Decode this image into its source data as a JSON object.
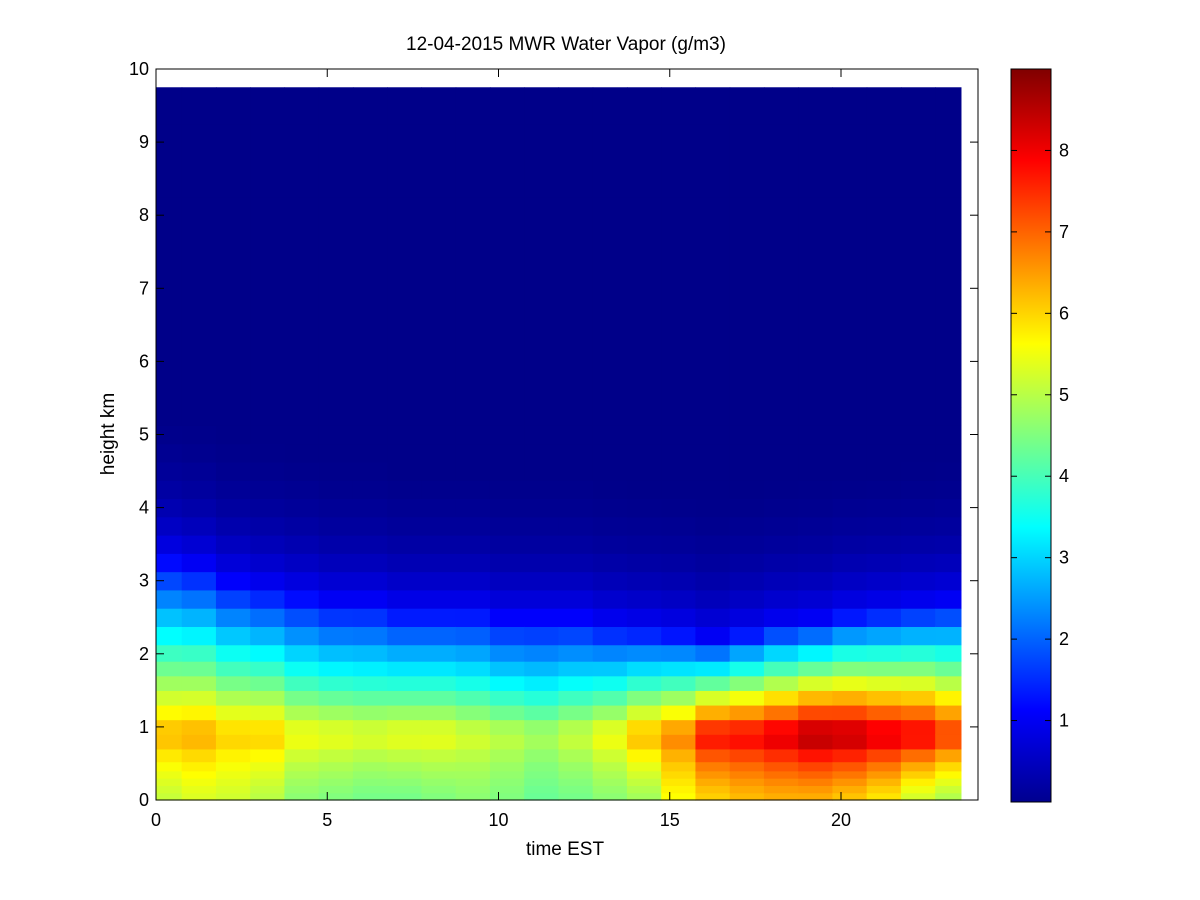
{
  "chart_data": {
    "type": "heatmap",
    "title": "12-04-2015 MWR Water Vapor (g/m3)",
    "xlabel": "time EST",
    "ylabel": "height km",
    "xlim": [
      0,
      24
    ],
    "ylim": [
      0,
      10
    ],
    "data_extent": {
      "x": [
        0,
        23.5
      ],
      "y": [
        0,
        9.75
      ]
    },
    "xticks": [
      0,
      5,
      10,
      15,
      20
    ],
    "yticks": [
      0,
      1,
      2,
      3,
      4,
      5,
      6,
      7,
      8,
      9,
      10
    ],
    "colormap": "jet",
    "colorbar": {
      "min": 0,
      "max": 9,
      "ticks": [
        1,
        2,
        3,
        4,
        5,
        6,
        7,
        8
      ]
    },
    "colors": {
      "background": "#ffffff",
      "axes": "#000000",
      "jet_low": "#00008f",
      "jet_high": "#800000"
    },
    "grid": false,
    "legend": "none",
    "time_hours": [
      0.25,
      1.25,
      2.25,
      3.25,
      4.25,
      5.25,
      6.25,
      7.25,
      8.25,
      9.25,
      10.25,
      11.25,
      12.25,
      13.25,
      14.25,
      15.25,
      16.25,
      17.25,
      18.25,
      19.25,
      20.25,
      21.25,
      22.25,
      23.25
    ],
    "heights_km": [
      0.05,
      0.15,
      0.25,
      0.35,
      0.45,
      0.6,
      0.8,
      1.0,
      1.2,
      1.4,
      1.6,
      1.8,
      2.0,
      2.25,
      2.5,
      2.75,
      3.0,
      3.25,
      3.5,
      3.75,
      4.0,
      4.25,
      4.5,
      4.75,
      5.0,
      5.25,
      5.5,
      6.0,
      6.5,
      7.0,
      7.5,
      8.0,
      8.5,
      9.0,
      9.5
    ],
    "vapor_surface_gm3": [
      5.1,
      5.3,
      5.2,
      5.0,
      4.6,
      4.5,
      4.4,
      4.4,
      4.5,
      4.6,
      4.5,
      4.3,
      4.4,
      4.6,
      4.8,
      5.6,
      6.0,
      6.2,
      6.3,
      6.3,
      6.1,
      5.8,
      5.2,
      4.9
    ],
    "vapor_peak_gm3": [
      6.3,
      6.4,
      6.1,
      6.1,
      5.6,
      5.5,
      5.4,
      5.5,
      5.5,
      5.3,
      5.1,
      4.9,
      5.2,
      5.6,
      6.3,
      6.8,
      7.9,
      8.0,
      8.3,
      8.7,
      8.6,
      8.3,
      8.1,
      7.5
    ],
    "moist_layer_top_km": [
      3.3,
      3.2,
      3.0,
      2.9,
      2.8,
      2.7,
      2.7,
      2.6,
      2.6,
      2.6,
      2.5,
      2.5,
      2.5,
      2.4,
      2.35,
      2.3,
      2.2,
      2.3,
      2.4,
      2.45,
      2.55,
      2.6,
      2.65,
      2.7
    ]
  }
}
